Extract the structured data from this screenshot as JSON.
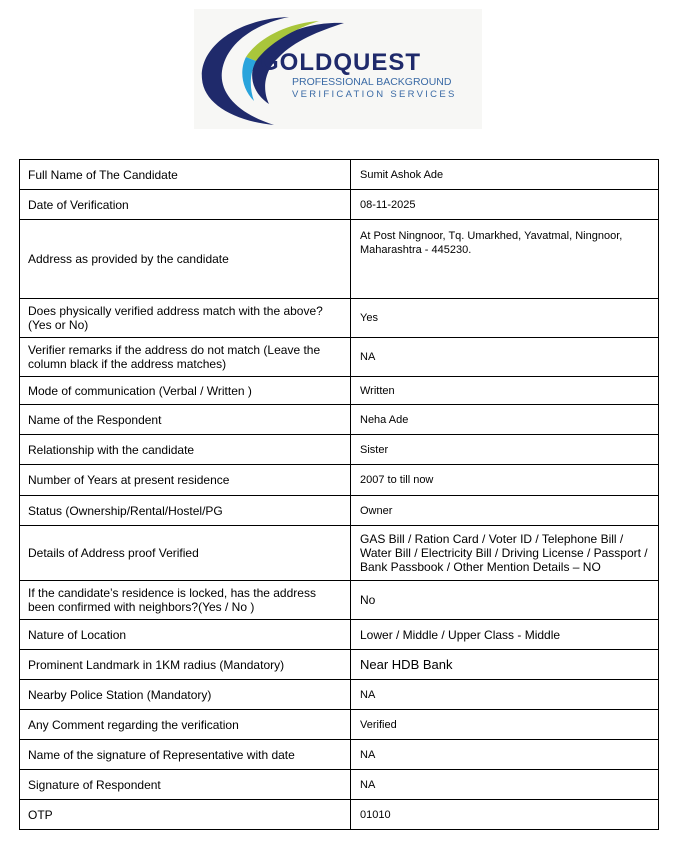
{
  "logo": {
    "brand": "GOLDQUEST",
    "tagline1": "PROFESSIONAL BACKGROUND",
    "tagline2": "VERIFICATION SERVICES",
    "colors": {
      "navy": "#1f2a6b",
      "green": "#a9c63b",
      "blue": "#2aa4dc"
    }
  },
  "rows": [
    {
      "label": "Full Name of The Candidate",
      "value": "Sumit Ashok Ade"
    },
    {
      "label": "Date of Verification",
      "value": "08-11-2025"
    },
    {
      "label": "Address as provided by the candidate",
      "value": "At Post Ningnoor, Tq. Umarkhed, Yavatmal, Ningnoor, Maharashtra - 445230."
    },
    {
      "label": "Does physically verified address match with the above? (Yes or No)",
      "value": "Yes"
    },
    {
      "label": "Verifier remarks if the address do not match (Leave the column black if the address matches)",
      "value": "NA"
    },
    {
      "label": "Mode of communication (Verbal / Written )",
      "value": "Written"
    },
    {
      "label": "Name of the Respondent",
      "value": "Neha Ade"
    },
    {
      "label": "Relationship with the candidate",
      "value": "Sister"
    },
    {
      "label": "Number of Years at present residence",
      "value": "2007 to till now"
    },
    {
      "label": "Status (Ownership/Rental/Hostel/PG",
      "value": "Owner"
    },
    {
      "label": "Details of Address proof Verified",
      "value": "GAS Bill / Ration Card / Voter ID / Telephone Bill / Water Bill / Electricity Bill / Driving License / Passport / Bank Passbook / Other Mention Details – NO"
    },
    {
      "label": "If the candidate’s residence is locked, has the address been confirmed with neighbors?(Yes / No )",
      "value": "No"
    },
    {
      "label": "Nature of Location",
      "value": "Lower / Middle / Upper Class - Middle"
    },
    {
      "label": "Prominent Landmark in 1KM radius (Mandatory)",
      "value": "Near HDB Bank"
    },
    {
      "label": "Nearby Police Station (Mandatory)",
      "value": "NA"
    },
    {
      "label": "Any Comment regarding the verification",
      "value": "Verified"
    },
    {
      "label": "Name of the signature of Representative with date",
      "value": "NA"
    },
    {
      "label": "Signature of Respondent",
      "value": "NA"
    },
    {
      "label": "OTP",
      "value": "01010"
    }
  ]
}
